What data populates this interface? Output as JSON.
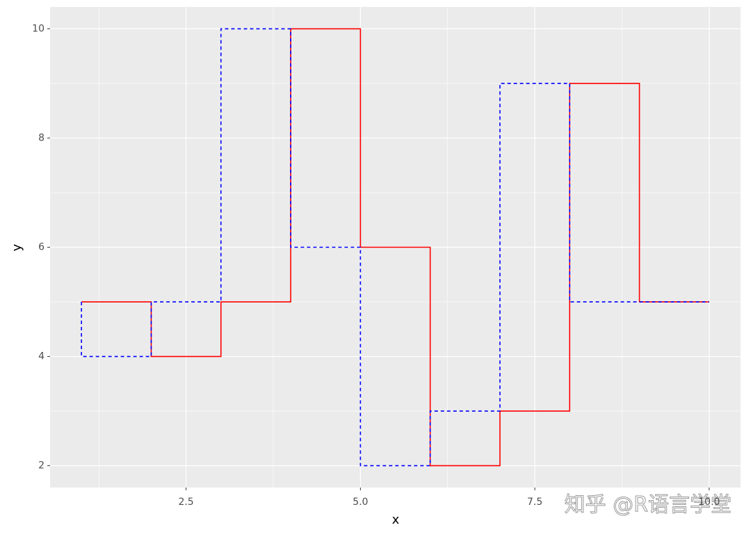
{
  "chart_data": {
    "type": "step",
    "x_label": "x",
    "y_label": "y",
    "x": [
      1,
      2,
      3,
      4,
      5,
      6,
      7,
      8,
      9,
      10
    ],
    "series": [
      {
        "color": "#ff0000",
        "line_style": "solid",
        "direction": "hv",
        "values": [
          5,
          4,
          5,
          10,
          6,
          2,
          3,
          9,
          5,
          5
        ]
      },
      {
        "color": "#0000ff",
        "line_style": "dashed",
        "direction": "vh",
        "values": [
          5,
          4,
          5,
          10,
          6,
          2,
          3,
          9,
          5,
          5
        ]
      }
    ],
    "xlim": [
      0.55,
      10.45
    ],
    "ylim": [
      1.6,
      10.4
    ],
    "xticks": [
      {
        "value": 2.5,
        "label": "2.5"
      },
      {
        "value": 5,
        "label": "5.0"
      },
      {
        "value": 7.5,
        "label": "7.5"
      },
      {
        "value": 10,
        "label": "10.0"
      }
    ],
    "yticks": [
      2,
      4,
      6,
      8,
      10
    ],
    "grid": true,
    "watermark": "知乎 @R语言学堂"
  }
}
